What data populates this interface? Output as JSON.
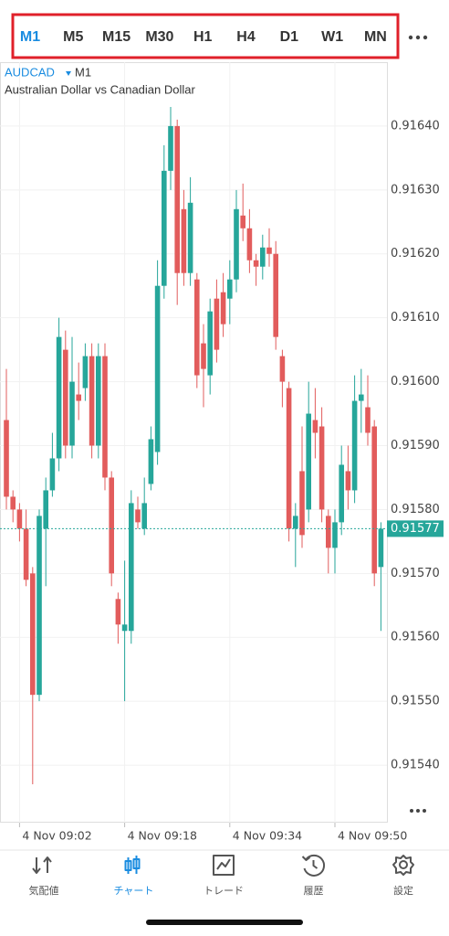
{
  "toolbar": {
    "timeframes": [
      "M1",
      "M5",
      "M15",
      "M30",
      "H1",
      "H4",
      "D1",
      "W1",
      "MN"
    ],
    "selected": 0
  },
  "chart_data": {
    "type": "candlestick",
    "symbol": "AUDCAD",
    "timeframe": "M1",
    "subtitle": "Australian Dollar vs Canadian Dollar",
    "categories": [
      null,
      null,
      "4 Nov 09:02",
      null,
      null,
      null,
      null,
      null,
      null,
      null,
      null,
      null,
      null,
      null,
      null,
      null,
      null,
      null,
      "4 Nov 09:18",
      null,
      null,
      null,
      null,
      null,
      null,
      null,
      null,
      null,
      null,
      null,
      null,
      null,
      null,
      null,
      "4 Nov 09:34",
      null,
      null,
      null,
      null,
      null,
      null,
      null,
      null,
      null,
      null,
      null,
      null,
      null,
      null,
      null,
      "4 Nov 09:50",
      null,
      null,
      null,
      null,
      null,
      null,
      null
    ],
    "open": [
      0.91594,
      0.91582,
      0.9158,
      0.91577,
      0.9157,
      0.91551,
      0.91577,
      0.91583,
      0.91588,
      0.91605,
      0.9159,
      0.91598,
      0.91599,
      0.91604,
      0.9159,
      0.91604,
      0.91585,
      0.91566,
      0.91561,
      0.91561,
      0.9158,
      0.91577,
      0.91584,
      0.91589,
      0.91615,
      0.91633,
      0.9164,
      0.91627,
      0.91617,
      0.91616,
      0.91606,
      0.91601,
      0.91613,
      0.91614,
      0.91613,
      0.91616,
      0.91626,
      0.91624,
      0.91619,
      0.91618,
      0.91621,
      0.9162,
      0.91604,
      0.91599,
      0.91577,
      0.91586,
      0.9158,
      0.91594,
      0.91593,
      0.91579,
      0.91574,
      0.91578,
      0.91586,
      0.91583,
      0.91597,
      0.91596,
      0.91593,
      0.91571
    ],
    "high": [
      0.91602,
      0.91583,
      0.91581,
      0.9158,
      0.91571,
      0.9158,
      0.91585,
      0.91592,
      0.9161,
      0.91608,
      0.91607,
      0.91603,
      0.91606,
      0.91606,
      0.91606,
      0.91606,
      0.91586,
      0.91567,
      0.91572,
      0.91583,
      0.91582,
      0.91585,
      0.91593,
      0.91619,
      0.91637,
      0.91643,
      0.91641,
      0.9163,
      0.91632,
      0.91617,
      0.91609,
      0.91613,
      0.91616,
      0.91617,
      0.91619,
      0.9163,
      0.91631,
      0.91627,
      0.9162,
      0.91623,
      0.91624,
      0.91622,
      0.91605,
      0.916,
      0.91581,
      0.91593,
      0.916,
      0.91599,
      0.91596,
      0.9158,
      0.9158,
      0.9159,
      0.9159,
      0.91601,
      0.91602,
      0.91601,
      0.91594,
      0.91578
    ],
    "low": [
      0.9158,
      0.91578,
      0.91575,
      0.91568,
      0.91537,
      0.9155,
      0.91568,
      0.91582,
      0.91586,
      0.91588,
      0.91588,
      0.91594,
      0.91597,
      0.91588,
      0.91588,
      0.91583,
      0.91568,
      0.91559,
      0.9155,
      0.91559,
      0.91577,
      0.91576,
      0.91583,
      0.91587,
      0.91613,
      0.9163,
      0.91612,
      0.91615,
      0.91615,
      0.91599,
      0.91596,
      0.91598,
      0.91603,
      0.91607,
      0.91609,
      0.91614,
      0.91622,
      0.91617,
      0.91615,
      0.91616,
      0.91618,
      0.91605,
      0.91596,
      0.91575,
      0.91571,
      0.91574,
      0.91578,
      0.91588,
      0.91578,
      0.9157,
      0.9157,
      0.91576,
      0.9158,
      0.91581,
      0.91592,
      0.9159,
      0.91568,
      0.91561
    ],
    "close": [
      0.91582,
      0.9158,
      0.91577,
      0.91569,
      0.91551,
      0.91579,
      0.91583,
      0.91588,
      0.91607,
      0.9159,
      0.916,
      0.91597,
      0.91604,
      0.9159,
      0.91604,
      0.91585,
      0.9157,
      0.91562,
      0.91562,
      0.91581,
      0.91578,
      0.91581,
      0.91591,
      0.91615,
      0.91633,
      0.9164,
      0.91617,
      0.91617,
      0.91628,
      0.91601,
      0.91602,
      0.91611,
      0.91605,
      0.91609,
      0.91616,
      0.91627,
      0.91624,
      0.91619,
      0.91618,
      0.91621,
      0.9162,
      0.91607,
      0.916,
      0.91577,
      0.91579,
      0.91576,
      0.91595,
      0.91592,
      0.9158,
      0.91574,
      0.91578,
      0.91587,
      0.91583,
      0.91597,
      0.91598,
      0.91592,
      0.9157,
      0.91577
    ],
    "up_color": "#26a69a",
    "down_color": "#e25c5c",
    "current_price": 0.91577,
    "ylim": [
      0.91531,
      0.9165
    ],
    "yticks": [
      {
        "value": 0.9164,
        "label": "0.91640"
      },
      {
        "value": 0.9163,
        "label": "0.91630"
      },
      {
        "value": 0.9162,
        "label": "0.91620"
      },
      {
        "value": 0.9161,
        "label": "0.91610"
      },
      {
        "value": 0.916,
        "label": "0.91600"
      },
      {
        "value": 0.9159,
        "label": "0.91590"
      },
      {
        "value": 0.9158,
        "label": "0.91580"
      },
      {
        "value": 0.9157,
        "label": "0.91570"
      },
      {
        "value": 0.9156,
        "label": "0.91560"
      },
      {
        "value": 0.9155,
        "label": "0.91550"
      },
      {
        "value": 0.9154,
        "label": "0.91540"
      }
    ]
  },
  "nav": {
    "items": [
      "気配値",
      "チャート",
      "トレード",
      "履歴",
      "設定"
    ],
    "selected": 1
  }
}
